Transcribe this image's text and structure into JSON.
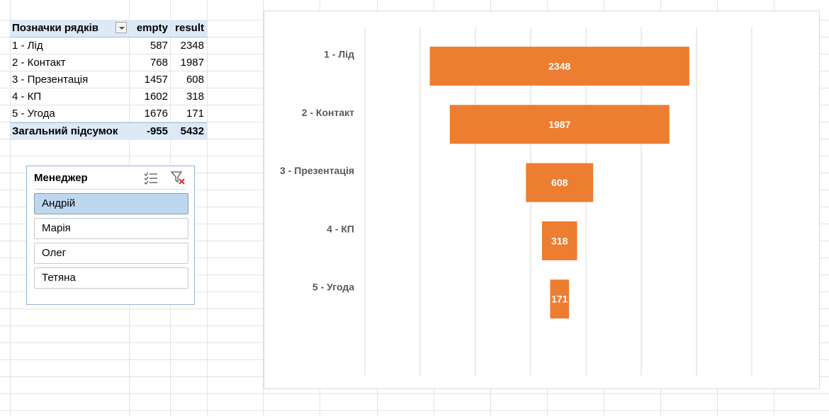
{
  "pivot": {
    "headers": [
      "Позначки рядків",
      "empty",
      "result"
    ],
    "rows": [
      {
        "label": "1 - Лід",
        "empty": "587",
        "result": "2348"
      },
      {
        "label": "2 - Контакт",
        "empty": "768",
        "result": "1987"
      },
      {
        "label": "3 - Презентація",
        "empty": "1457",
        "result": "608"
      },
      {
        "label": "4 - КП",
        "empty": "1602",
        "result": "318"
      },
      {
        "label": "5 - Угода",
        "empty": "1676",
        "result": "171"
      }
    ],
    "total": {
      "label": "Загальний підсумок",
      "empty": "-955",
      "result": "5432"
    }
  },
  "slicer": {
    "title": "Менеджер",
    "items": [
      {
        "label": "Андрій",
        "selected": true
      },
      {
        "label": "Марія",
        "selected": false
      },
      {
        "label": "Олег",
        "selected": false
      },
      {
        "label": "Тетяна",
        "selected": false
      }
    ],
    "icons": [
      "multi-select-icon",
      "clear-filter-icon"
    ]
  },
  "chart_data": {
    "type": "bar",
    "orientation": "horizontal",
    "style": "funnel (stacked bar with invisible 'empty' series)",
    "categories": [
      "1 - Лід",
      "2 - Контакт",
      "3 - Презентація",
      "4 - КП",
      "5 - Угода"
    ],
    "series": [
      {
        "name": "empty",
        "values": [
          587,
          768,
          1457,
          1602,
          1676
        ],
        "color": "transparent"
      },
      {
        "name": "result",
        "values": [
          2348,
          1987,
          608,
          318,
          171
        ],
        "color": "#ed7d31"
      }
    ],
    "data_labels": [
      "2348",
      "1987",
      "608",
      "318",
      "171"
    ],
    "xlim": [
      0,
      3500
    ],
    "grid": true,
    "legend": "none"
  },
  "colors": {
    "accent": "#ed7d31",
    "header_bg": "#dde9f6",
    "slicer_selected": "#bdd7ee",
    "gridline": "#d9d9d9"
  }
}
